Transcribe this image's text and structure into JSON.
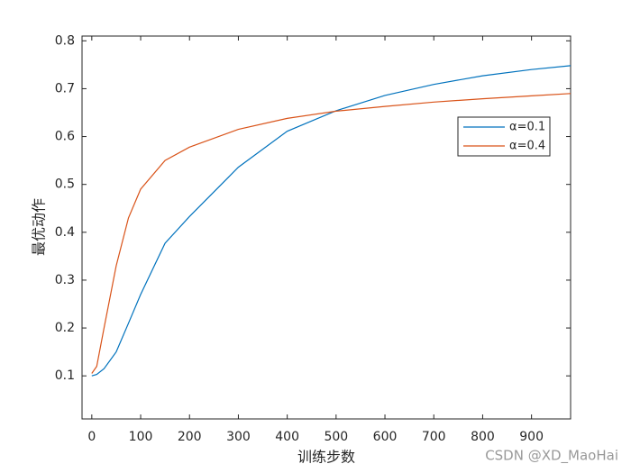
{
  "chart_data": {
    "type": "line",
    "xlabel": "训练步数",
    "ylabel": "最优动作",
    "x": [
      0,
      10,
      25,
      50,
      75,
      100,
      150,
      200,
      300,
      400,
      500,
      600,
      700,
      800,
      900,
      980
    ],
    "series": [
      {
        "name": "α=0.1",
        "color": "#0072bd",
        "values": [
          0.1,
          0.103,
          0.115,
          0.15,
          0.21,
          0.27,
          0.377,
          0.433,
          0.536,
          0.611,
          0.654,
          0.686,
          0.709,
          0.727,
          0.74,
          0.748
        ]
      },
      {
        "name": "α=0.4",
        "color": "#d95319",
        "values": [
          0.105,
          0.12,
          0.2,
          0.33,
          0.43,
          0.49,
          0.55,
          0.578,
          0.615,
          0.638,
          0.653,
          0.663,
          0.672,
          0.679,
          0.685,
          0.69
        ]
      }
    ],
    "xlim": [
      -20,
      980
    ],
    "ylim": [
      0.01,
      0.81
    ],
    "xticks": [
      0,
      100,
      200,
      300,
      400,
      500,
      600,
      700,
      800,
      900
    ],
    "yticks": [
      0.1,
      0.2,
      0.3,
      0.4,
      0.5,
      0.6,
      0.7,
      0.8
    ],
    "legend": "upper-right",
    "watermark": "CSDN @XD_MaoHai"
  }
}
